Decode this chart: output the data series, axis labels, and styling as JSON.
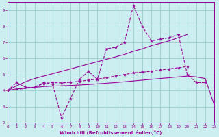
{
  "background_color": "#cceef0",
  "grid_color": "#99cccc",
  "line_color": "#990099",
  "xlabel": "Windchill (Refroidissement éolien,°C)",
  "xlim": [
    0,
    23
  ],
  "ylim": [
    2,
    9.5
  ],
  "xtick_labels": [
    "0",
    "1",
    "2",
    "3",
    "4",
    "5",
    "6",
    "7",
    "8",
    "9",
    "10",
    "11",
    "12",
    "13",
    "14",
    "15",
    "16",
    "17",
    "18",
    "19",
    "20",
    "21",
    "22",
    "23"
  ],
  "yticks": [
    2,
    3,
    4,
    5,
    6,
    7,
    8,
    9
  ],
  "series": [
    {
      "x": [
        0,
        1,
        2,
        3,
        4,
        5,
        6,
        7,
        8,
        9,
        10,
        11,
        12,
        13,
        14,
        15,
        16,
        17,
        18,
        19,
        20,
        21,
        22
      ],
      "y": [
        4.0,
        4.5,
        4.2,
        4.2,
        4.5,
        4.4,
        2.3,
        3.5,
        4.7,
        5.2,
        4.7,
        6.6,
        6.7,
        7.0,
        9.3,
        8.0,
        7.1,
        7.2,
        7.3,
        7.5,
        5.0,
        4.5,
        4.5
      ],
      "has_markers": true
    },
    {
      "x": [
        0,
        1,
        2,
        3,
        4,
        5,
        6,
        7,
        8,
        9,
        10,
        11,
        12,
        13,
        14,
        15,
        16,
        17,
        18,
        19,
        20,
        21,
        22,
        23
      ],
      "y": [
        4.0,
        4.1,
        4.15,
        4.2,
        4.25,
        4.28,
        4.3,
        4.32,
        4.35,
        4.38,
        4.42,
        4.46,
        4.5,
        4.55,
        4.6,
        4.65,
        4.7,
        4.75,
        4.8,
        4.85,
        4.9,
        4.85,
        4.75,
        3.1
      ],
      "has_markers": false
    },
    {
      "x": [
        0,
        1,
        2,
        3,
        4,
        5,
        6,
        7,
        8,
        9,
        10,
        11,
        12,
        13,
        14,
        15,
        16,
        17,
        18,
        19,
        20
      ],
      "y": [
        4.0,
        4.3,
        4.55,
        4.75,
        4.9,
        5.05,
        5.2,
        5.35,
        5.5,
        5.65,
        5.8,
        5.95,
        6.1,
        6.25,
        6.45,
        6.6,
        6.8,
        6.95,
        7.1,
        7.3,
        7.5
      ],
      "has_markers": false
    },
    {
      "x": [
        0,
        3,
        4,
        5,
        6,
        7,
        8,
        9,
        10,
        11,
        12,
        13,
        14,
        15,
        16,
        17,
        18,
        19,
        20
      ],
      "y": [
        4.0,
        4.2,
        4.45,
        4.5,
        4.48,
        4.52,
        4.58,
        4.65,
        4.72,
        4.8,
        4.9,
        5.0,
        5.1,
        5.15,
        5.2,
        5.28,
        5.35,
        5.42,
        5.5
      ],
      "has_markers": true
    }
  ]
}
